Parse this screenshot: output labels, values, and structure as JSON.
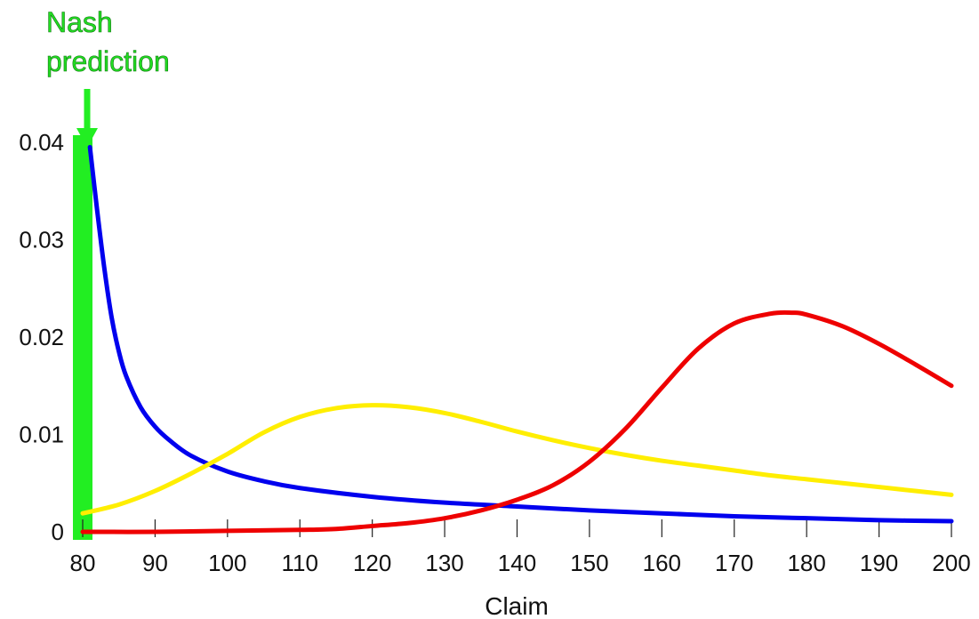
{
  "chart_data": {
    "type": "line",
    "title": "",
    "xlabel": "Claim",
    "ylabel": "",
    "xlim": [
      80,
      200
    ],
    "ylim": [
      0,
      0.04
    ],
    "x_ticks": [
      80,
      90,
      100,
      110,
      120,
      130,
      140,
      150,
      160,
      170,
      180,
      190,
      200
    ],
    "y_ticks": [
      0,
      0.01,
      0.02,
      0.03,
      0.04
    ],
    "y_tick_labels": [
      "0",
      "0.01",
      "0.02",
      "0.03",
      "0.04"
    ],
    "grid": false,
    "annotation": {
      "text_lines": [
        "Nash",
        "prediction"
      ],
      "x": 80,
      "color": "#22ee22"
    },
    "series": [
      {
        "color": "#0000ee",
        "x": [
          81,
          82,
          83,
          84,
          85,
          86,
          88,
          90,
          92,
          95,
          100,
          105,
          110,
          120,
          130,
          140,
          150,
          160,
          170,
          180,
          190,
          200
        ],
        "y": [
          0.0395,
          0.033,
          0.027,
          0.022,
          0.0185,
          0.016,
          0.0128,
          0.0108,
          0.0094,
          0.0078,
          0.0062,
          0.0052,
          0.0045,
          0.0036,
          0.003,
          0.0026,
          0.0022,
          0.0019,
          0.0016,
          0.0014,
          0.0012,
          0.0011
        ]
      },
      {
        "color": "#ffee00",
        "x": [
          80,
          85,
          90,
          95,
          100,
          105,
          110,
          115,
          120,
          125,
          130,
          135,
          140,
          145,
          150,
          155,
          160,
          165,
          170,
          175,
          180,
          185,
          190,
          195,
          200
        ],
        "y": [
          0.0019,
          0.0028,
          0.0042,
          0.006,
          0.008,
          0.0102,
          0.0118,
          0.0127,
          0.013,
          0.0128,
          0.0122,
          0.0113,
          0.0103,
          0.0094,
          0.0086,
          0.0079,
          0.0073,
          0.0068,
          0.0063,
          0.0058,
          0.0054,
          0.005,
          0.0046,
          0.0042,
          0.0038
        ]
      },
      {
        "color": "#ee0000",
        "x": [
          80,
          90,
          100,
          110,
          115,
          120,
          125,
          130,
          135,
          140,
          145,
          150,
          155,
          160,
          165,
          170,
          175,
          178,
          180,
          185,
          190,
          195,
          200
        ],
        "y": [
          0.0,
          0.0,
          0.0001,
          0.0002,
          0.0003,
          0.0006,
          0.0009,
          0.0014,
          0.0022,
          0.0033,
          0.0048,
          0.0072,
          0.0106,
          0.0148,
          0.0188,
          0.0214,
          0.0224,
          0.0225,
          0.0223,
          0.0211,
          0.0193,
          0.0172,
          0.015
        ]
      }
    ]
  }
}
